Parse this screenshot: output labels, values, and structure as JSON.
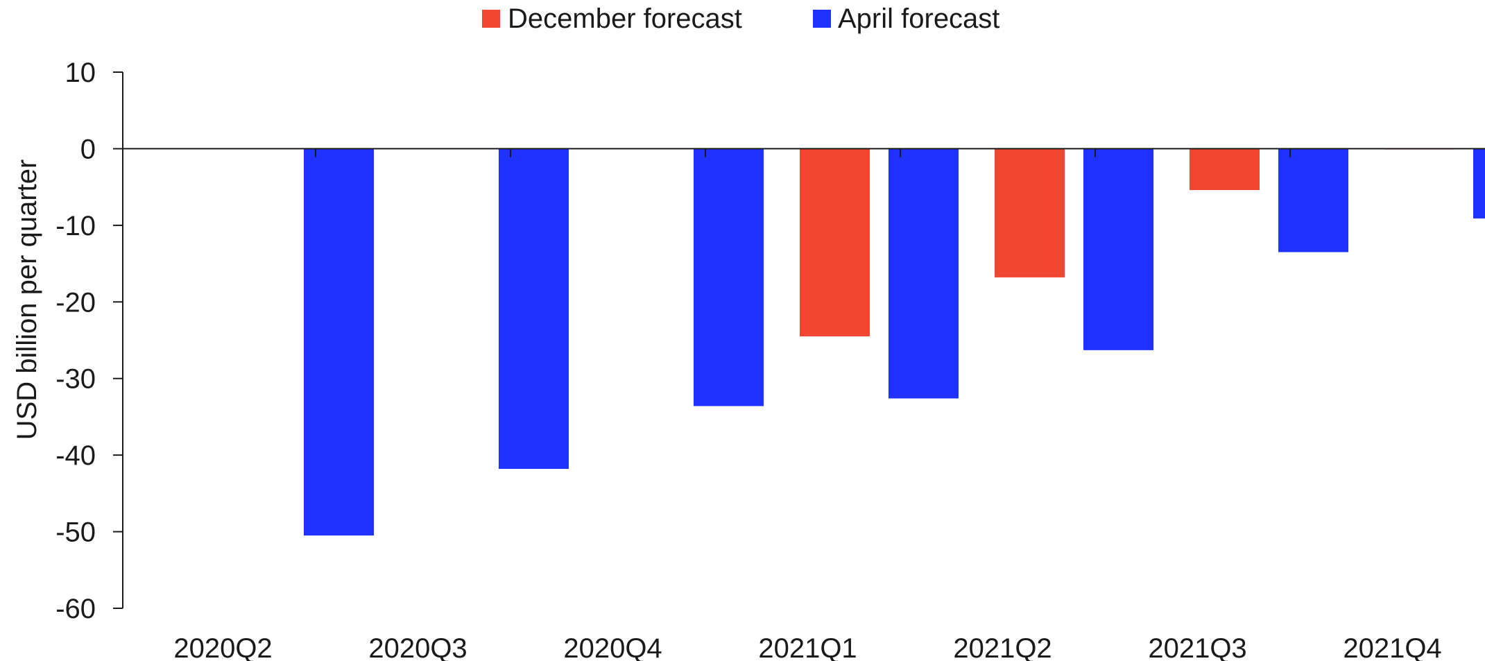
{
  "chart_data": {
    "type": "bar",
    "categories": [
      "2020Q2",
      "2020Q3",
      "2020Q4",
      "2021Q1",
      "2021Q2",
      "2021Q3",
      "2021Q4"
    ],
    "series": [
      {
        "name": "December forecast",
        "color": "#f04632",
        "values": [
          null,
          null,
          null,
          -24.5,
          -16.8,
          -5.4,
          -0.1
        ]
      },
      {
        "name": "April forecast",
        "color": "#1f32ff",
        "values": [
          -50.5,
          -41.8,
          -33.6,
          -32.6,
          -26.3,
          -13.5,
          -9.1
        ]
      }
    ],
    "title": "",
    "xlabel": "",
    "ylabel": "USD billion per quarter",
    "ylim": [
      -60,
      10
    ],
    "yticks": [
      10,
      0,
      -10,
      -20,
      -30,
      -40,
      -50,
      -60
    ],
    "ytick_labels": [
      "10",
      "0",
      "-10",
      "-20",
      "-30",
      "-40",
      "-50",
      "-60"
    ],
    "grid": false,
    "legend_position": "top-center"
  }
}
